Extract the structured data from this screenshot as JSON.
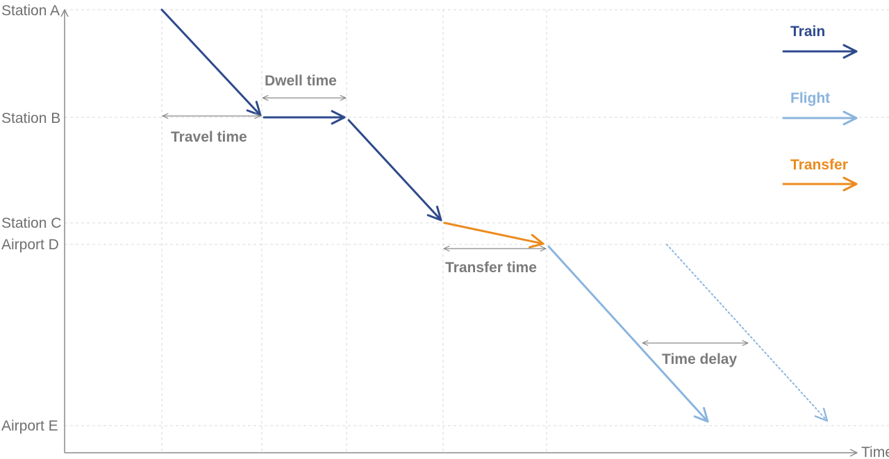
{
  "stations": {
    "a": "Station A",
    "b": "Station B",
    "c": "Station C",
    "d": "Airport D",
    "e": "Airport E"
  },
  "axis": {
    "time": "Time"
  },
  "annotations": {
    "dwell": "Dwell time",
    "travel": "Travel time",
    "transfer": "Transfer time",
    "delay": "Time delay"
  },
  "legend": {
    "train": "Train",
    "flight": "Flight",
    "transfer": "Transfer"
  },
  "colors": {
    "train": "#2e4a8c",
    "flight": "#8ab4de",
    "transfer": "#ec8a1c"
  }
}
